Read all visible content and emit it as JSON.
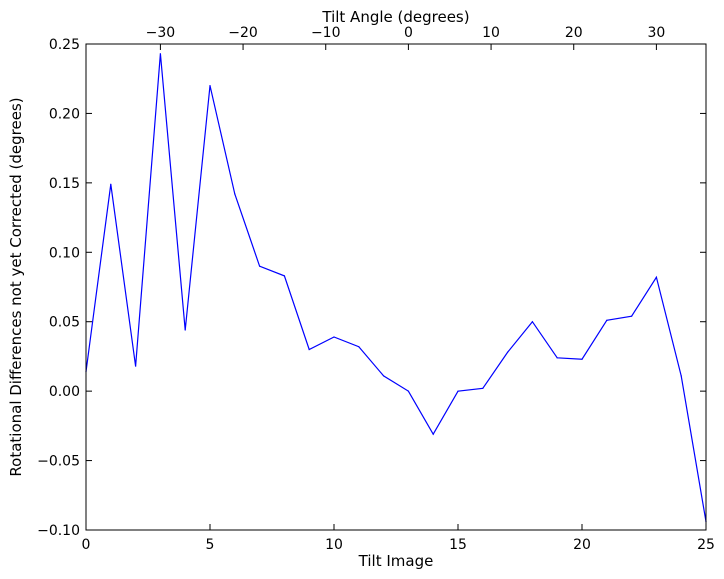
{
  "chart_data": {
    "type": "line",
    "title": "",
    "xlabel": "Tilt Image",
    "ylabel": "Rotational Differences not yet Corrected (degrees)",
    "top_xlabel": "Tilt Angle (degrees)",
    "xlim": [
      0,
      25
    ],
    "ylim": [
      -0.1,
      0.25
    ],
    "x_ticks": [
      0,
      5,
      10,
      15,
      20,
      25
    ],
    "x_tick_labels": [
      "0",
      "5",
      "10",
      "15",
      "20",
      "25"
    ],
    "y_ticks": [
      -0.1,
      -0.05,
      0.0,
      0.05,
      0.1,
      0.15,
      0.2,
      0.25
    ],
    "y_tick_labels": [
      "−0.10",
      "−0.05",
      "0.00",
      "0.05",
      "0.10",
      "0.15",
      "0.20",
      "0.25"
    ],
    "top_ticks": [
      -30,
      -20,
      -10,
      0,
      10,
      20,
      30
    ],
    "top_tick_labels": [
      "−30",
      "−20",
      "−10",
      "0",
      "10",
      "20",
      "30"
    ],
    "top_xlim": [
      -39,
      36
    ],
    "grid": false,
    "series": [
      {
        "color": "#0000ff",
        "x": [
          0,
          1,
          2,
          3,
          4,
          5,
          6,
          7,
          8,
          9,
          10,
          11,
          12,
          13,
          14,
          15,
          16,
          17,
          18,
          19,
          20,
          21,
          22,
          23,
          24,
          25
        ],
        "y": [
          0.014,
          0.149,
          0.018,
          0.243,
          0.044,
          0.22,
          0.142,
          0.09,
          0.083,
          0.03,
          0.039,
          0.032,
          0.011,
          0.0,
          -0.031,
          0.0,
          0.002,
          0.028,
          0.05,
          0.024,
          0.023,
          0.051,
          0.054,
          0.082,
          0.011,
          -0.094
        ]
      }
    ]
  }
}
